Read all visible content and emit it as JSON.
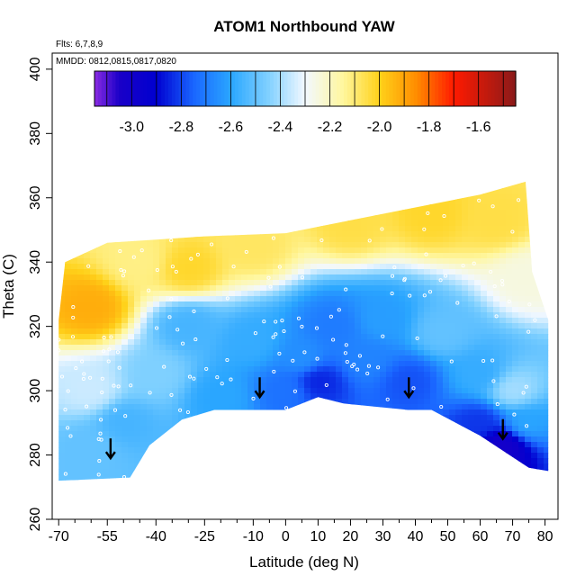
{
  "chart_data": {
    "type": "heatmap",
    "title": "ATOM1 Northbound YAW",
    "flights_note": "Flts: 6,7,8,9",
    "dates_note": "MMDD: 0812,0815,0817,0820",
    "xlabel": "Latitude (deg N)",
    "ylabel": "Theta (C)",
    "xlim": [
      -72,
      84
    ],
    "ylim": [
      260,
      405
    ],
    "x_ticks": [
      -70,
      -55,
      -40,
      -25,
      -10,
      0,
      10,
      20,
      30,
      40,
      50,
      60,
      70,
      80
    ],
    "x_tick_labels": [
      "-70",
      "-55",
      "-40",
      "-25",
      "-10",
      "0",
      "10",
      "20",
      "30",
      "40",
      "50",
      "60",
      "70",
      "80"
    ],
    "x_minor_ticks": [
      -65,
      -60,
      -50,
      -45,
      -35,
      -30,
      -20,
      -15,
      -5,
      5,
      15,
      25,
      35,
      45,
      55,
      65,
      75
    ],
    "y_ticks": [
      260,
      280,
      300,
      320,
      340,
      360,
      380,
      400
    ],
    "y_tick_labels": [
      "260",
      "280",
      "300",
      "320",
      "340",
      "360",
      "380",
      "400"
    ],
    "colorbar": {
      "min": -3.15,
      "max": -1.45,
      "ticks": [
        -3.0,
        -2.8,
        -2.6,
        -2.4,
        -2.2,
        -2.0,
        -1.8,
        -1.6
      ],
      "tick_labels": [
        "-3.0",
        "-2.8",
        "-2.6",
        "-2.4",
        "-2.2",
        "-2.0",
        "-1.8",
        "-1.6"
      ],
      "stops": [
        {
          "value": -3.15,
          "color": "#8a2be2"
        },
        {
          "value": -3.05,
          "color": "#1a00c8"
        },
        {
          "value": -2.9,
          "color": "#0000d0"
        },
        {
          "value": -2.75,
          "color": "#1a66ff"
        },
        {
          "value": -2.6,
          "color": "#2aa6ff"
        },
        {
          "value": -2.45,
          "color": "#7fd0ff"
        },
        {
          "value": -2.3,
          "color": "#f2f8ff"
        },
        {
          "value": -2.15,
          "color": "#fff7a0"
        },
        {
          "value": -2.0,
          "color": "#ffd21a"
        },
        {
          "value": -1.85,
          "color": "#ff8c00"
        },
        {
          "value": -1.7,
          "color": "#ff1a00"
        },
        {
          "value": -1.45,
          "color": "#8b1a1a"
        }
      ]
    },
    "region": {
      "top_boundary": [
        [
          -70,
          322
        ],
        [
          -68,
          340
        ],
        [
          -55,
          346
        ],
        [
          -40,
          347
        ],
        [
          -25,
          348
        ],
        [
          0,
          349
        ],
        [
          20,
          353
        ],
        [
          40,
          357
        ],
        [
          60,
          361
        ],
        [
          74,
          365
        ],
        [
          76,
          337
        ],
        [
          81,
          322
        ],
        [
          81,
          300
        ]
      ],
      "bottom_boundary": [
        [
          81,
          275
        ],
        [
          75,
          276
        ],
        [
          60,
          286
        ],
        [
          45,
          294
        ],
        [
          38,
          294
        ],
        [
          28,
          295
        ],
        [
          18,
          296
        ],
        [
          10,
          298
        ],
        [
          0,
          294
        ],
        [
          -10,
          294
        ],
        [
          -22,
          294
        ],
        [
          -32,
          291
        ],
        [
          -42,
          283
        ],
        [
          -48,
          273
        ],
        [
          -70,
          272
        ]
      ]
    },
    "anomalies": [
      {
        "lat": -60,
        "theta": 326,
        "value": -1.92
      },
      {
        "lat": -45,
        "theta": 340,
        "value": -2.12
      },
      {
        "lat": -30,
        "theta": 338,
        "value": -2.02
      },
      {
        "lat": -10,
        "theta": 345,
        "value": -2.08
      },
      {
        "lat": 20,
        "theta": 352,
        "value": -2.05
      },
      {
        "lat": 45,
        "theta": 355,
        "value": -2.02
      },
      {
        "lat": 65,
        "theta": 353,
        "value": -2.05
      },
      {
        "lat": -60,
        "theta": 300,
        "value": -2.35
      },
      {
        "lat": -40,
        "theta": 305,
        "value": -2.45
      },
      {
        "lat": -30,
        "theta": 320,
        "value": -2.55
      },
      {
        "lat": -10,
        "theta": 315,
        "value": -2.58
      },
      {
        "lat": 5,
        "theta": 310,
        "value": -2.65
      },
      {
        "lat": 15,
        "theta": 320,
        "value": -2.7
      },
      {
        "lat": 25,
        "theta": 310,
        "value": -2.68
      },
      {
        "lat": 30,
        "theta": 322,
        "value": -2.62
      },
      {
        "lat": 48,
        "theta": 318,
        "value": -2.5
      },
      {
        "lat": 60,
        "theta": 305,
        "value": -2.58
      },
      {
        "lat": 70,
        "theta": 300,
        "value": -2.4
      },
      {
        "lat": -60,
        "theta": 282,
        "value": -2.5
      },
      {
        "lat": -50,
        "theta": 290,
        "value": -2.55
      },
      {
        "lat": -20,
        "theta": 298,
        "value": -2.6
      },
      {
        "lat": 0,
        "theta": 300,
        "value": -2.72
      },
      {
        "lat": 10,
        "theta": 303,
        "value": -2.85
      },
      {
        "lat": 38,
        "theta": 303,
        "value": -2.78
      },
      {
        "lat": 60,
        "theta": 290,
        "value": -2.82
      },
      {
        "lat": 67,
        "theta": 283,
        "value": -3.02
      },
      {
        "lat": 74,
        "theta": 290,
        "value": -2.6
      },
      {
        "lat": 75,
        "theta": 335,
        "value": -2.25
      }
    ],
    "arrows": [
      {
        "lat": -54,
        "theta": 279
      },
      {
        "lat": -8,
        "theta": 298
      },
      {
        "lat": 38,
        "theta": 298
      },
      {
        "lat": 67,
        "theta": 285
      }
    ]
  }
}
